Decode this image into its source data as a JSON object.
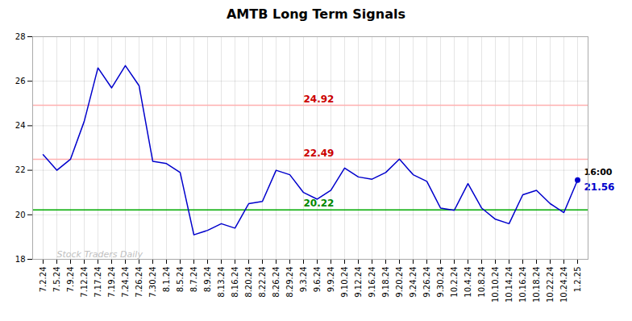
{
  "chart_data": {
    "type": "line",
    "title": "AMTB Long Term Signals",
    "categories": [
      "7.2.24",
      "7.5.24",
      "7.9.24",
      "7.12.24",
      "7.17.24",
      "7.19.24",
      "7.24.24",
      "7.26.24",
      "7.30.24",
      "8.1.24",
      "8.5.24",
      "8.7.24",
      "8.9.24",
      "8.13.24",
      "8.16.24",
      "8.20.24",
      "8.22.24",
      "8.26.24",
      "8.29.24",
      "9.3.24",
      "9.6.24",
      "9.9.24",
      "9.10.24",
      "9.12.24",
      "9.16.24",
      "9.18.24",
      "9.20.24",
      "9.24.24",
      "9.26.24",
      "9.30.24",
      "10.2.24",
      "10.4.24",
      "10.8.24",
      "10.10.24",
      "10.14.24",
      "10.16.24",
      "10.18.24",
      "10.22.24",
      "10.24.24",
      "1.2.25"
    ],
    "values": [
      22.7,
      22.0,
      22.5,
      24.2,
      26.6,
      25.7,
      26.7,
      25.8,
      22.4,
      22.3,
      21.9,
      19.1,
      19.3,
      19.6,
      19.4,
      20.5,
      20.6,
      22.0,
      21.8,
      21.0,
      20.7,
      21.1,
      22.1,
      21.7,
      21.6,
      21.9,
      22.5,
      21.8,
      21.5,
      20.3,
      20.2,
      21.4,
      20.3,
      19.8,
      19.6,
      20.9,
      21.1,
      20.5,
      20.1,
      21.56
    ],
    "color": "#0000cc",
    "marker": "last",
    "ylim": [
      18,
      28
    ],
    "yticks": [
      18,
      20,
      22,
      24,
      26,
      28
    ],
    "grid": true,
    "reference_lines": [
      {
        "value": 24.92,
        "color": "#ffb0b0",
        "label": "24.92",
        "label_color": "#cc0000",
        "label_at": "9.3.24"
      },
      {
        "value": 22.49,
        "color": "#ffb0b0",
        "label": "22.49",
        "label_color": "#cc0000",
        "label_at": "9.3.24"
      },
      {
        "value": 20.22,
        "color": "#00aa00",
        "label": "20.22",
        "label_color": "#008800",
        "label_at": "9.3.24"
      }
    ],
    "annotations": [
      {
        "text": "16:00",
        "x": "1.2.25",
        "y": 21.56,
        "color": "#000000"
      },
      {
        "text": "21.56",
        "x": "1.2.25",
        "y": 21.56,
        "color": "#0000cc"
      }
    ],
    "watermark": {
      "text": "Stock Traders Daily",
      "color": "#c0c0c0"
    }
  }
}
